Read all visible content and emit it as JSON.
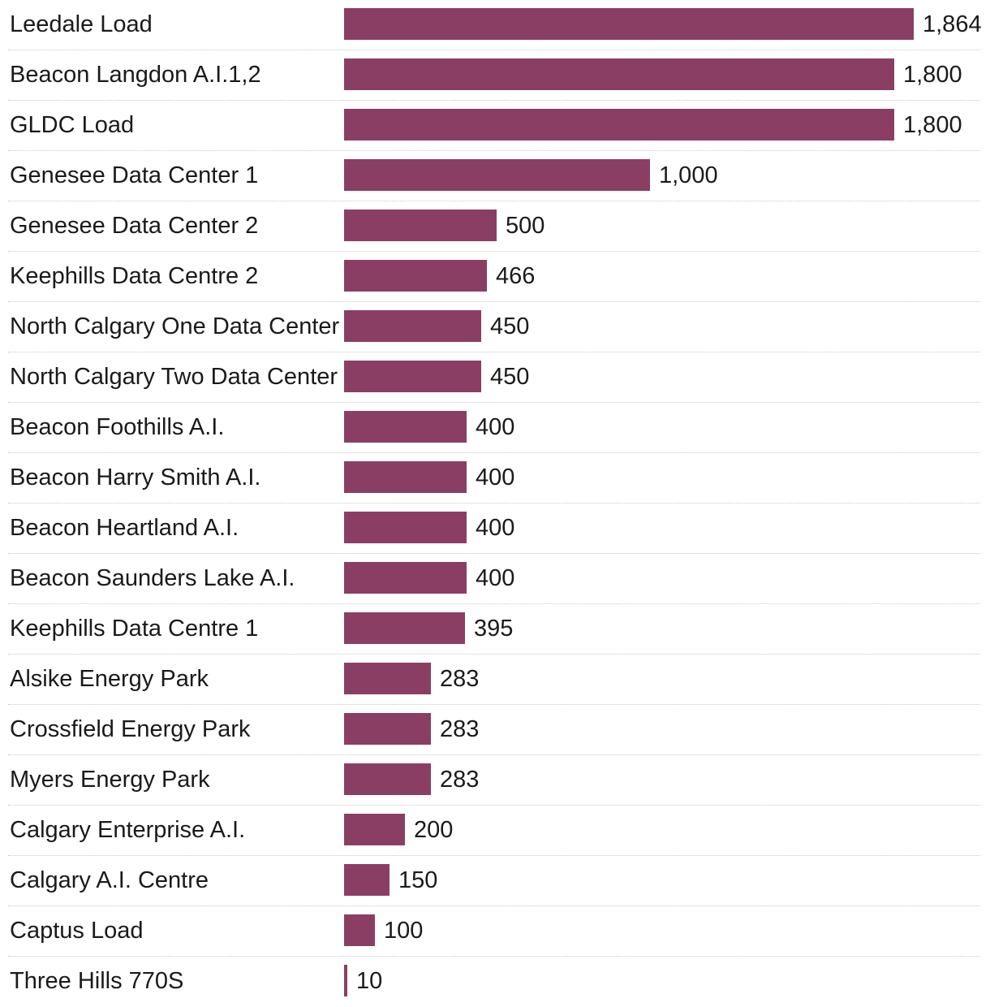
{
  "chart_data": {
    "type": "bar",
    "orientation": "horizontal",
    "title": "",
    "xlabel": "",
    "ylabel": "",
    "bar_color": "#8b3e63",
    "xlim": [
      0,
      1864
    ],
    "categories": [
      "Leedale Load",
      "Beacon Langdon A.I.1,2",
      "GLDC Load",
      "Genesee Data Center 1",
      "Genesee Data Center 2",
      "Keephills Data Centre 2",
      "North Calgary One Data Center",
      "North Calgary Two Data Center",
      "Beacon Foothills A.I.",
      "Beacon Harry Smith A.I.",
      "Beacon Heartland A.I.",
      "Beacon Saunders Lake A.I.",
      "Keephills Data Centre 1",
      "Alsike Energy Park",
      "Crossfield Energy Park",
      "Myers Energy Park",
      "Calgary Enterprise A.I.",
      "Calgary A.I. Centre",
      "Captus Load",
      "Three Hills 770S"
    ],
    "values": [
      1864,
      1800,
      1800,
      1000,
      500,
      466,
      450,
      450,
      400,
      400,
      400,
      400,
      395,
      283,
      283,
      283,
      200,
      150,
      100,
      10
    ],
    "value_labels": [
      "1,864",
      "1,800",
      "1,800",
      "1,000",
      "500",
      "466",
      "450",
      "450",
      "400",
      "400",
      "400",
      "400",
      "395",
      "283",
      "283",
      "283",
      "200",
      "150",
      "100",
      "10"
    ]
  }
}
